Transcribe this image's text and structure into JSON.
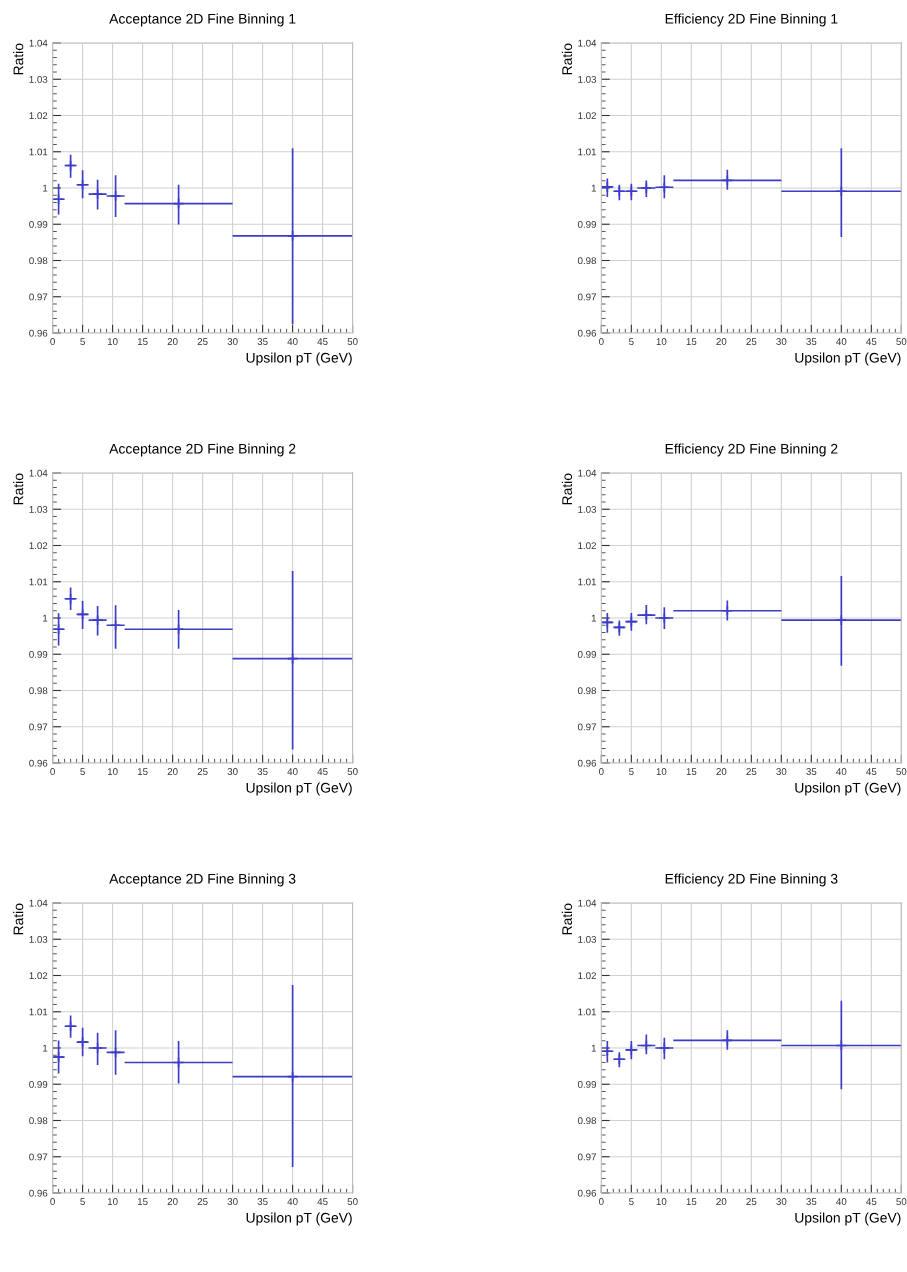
{
  "chart_data": [
    {
      "type": "scatter",
      "title": "Acceptance 2D Fine Binning 1",
      "xlabel": "Upsilon pT (GeV)",
      "ylabel": "Ratio",
      "x": [
        1,
        3,
        5,
        7.5,
        10.5,
        21,
        40
      ],
      "xerrors": [
        [
          0,
          2
        ],
        [
          2,
          4
        ],
        [
          4,
          6
        ],
        [
          6,
          9
        ],
        [
          9,
          12
        ],
        [
          12,
          30
        ],
        [
          30,
          50
        ]
      ],
      "values": [
        0.9969,
        1.0062,
        1.0009,
        0.9983,
        0.9978,
        0.9957,
        0.9868
      ],
      "errors": [
        [
          0.9927,
          1.0012
        ],
        [
          1.0028,
          1.0092
        ],
        [
          0.9972,
          1.0049
        ],
        [
          0.9941,
          1.0023
        ],
        [
          0.992,
          1.0035
        ],
        [
          0.9899,
          1.0009
        ],
        [
          0.9624,
          1.011
        ]
      ],
      "color": "#3c3cc8",
      "marker": "cross",
      "grid": true,
      "xlim": [
        0,
        50
      ],
      "ylim": [
        0.96,
        1.04
      ],
      "xticks": [
        0,
        5,
        10,
        15,
        20,
        25,
        30,
        35,
        40,
        45,
        50
      ],
      "yticks": [
        0.96,
        0.97,
        0.98,
        0.99,
        1,
        1.01,
        1.02,
        1.03,
        1.04
      ]
    },
    {
      "type": "scatter",
      "title": "Efficiency 2D Fine Binning 1",
      "xlabel": "Upsilon pT (GeV)",
      "ylabel": "Ratio",
      "x": [
        1,
        3,
        5,
        7.5,
        10.5,
        21,
        40
      ],
      "xerrors": [
        [
          0,
          2
        ],
        [
          2,
          4
        ],
        [
          4,
          6
        ],
        [
          6,
          9
        ],
        [
          9,
          12
        ],
        [
          12,
          30
        ],
        [
          30,
          50
        ]
      ],
      "values": [
        1.0003,
        0.9991,
        0.9991,
        1.0,
        1.0002,
        1.0021,
        0.9991
      ],
      "errors": [
        [
          0.9975,
          1.0026
        ],
        [
          0.9966,
          1.0009
        ],
        [
          0.9966,
          1.0012
        ],
        [
          0.9975,
          1.0021
        ],
        [
          0.9972,
          1.0035
        ],
        [
          0.9995,
          1.005
        ],
        [
          0.9865,
          1.011
        ]
      ],
      "color": "#3c3cc8",
      "marker": "cross",
      "grid": true,
      "xlim": [
        0,
        50
      ],
      "ylim": [
        0.96,
        1.04
      ],
      "xticks": [
        0,
        5,
        10,
        15,
        20,
        25,
        30,
        35,
        40,
        45,
        50
      ],
      "yticks": [
        0.96,
        0.97,
        0.98,
        0.99,
        1,
        1.01,
        1.02,
        1.03,
        1.04
      ]
    },
    {
      "type": "scatter",
      "title": "Acceptance 2D Fine Binning 2",
      "xlabel": "Upsilon pT (GeV)",
      "ylabel": "Ratio",
      "x": [
        1,
        3,
        5,
        7.5,
        10.5,
        21,
        40
      ],
      "xerrors": [
        [
          0,
          2
        ],
        [
          2,
          4
        ],
        [
          4,
          6
        ],
        [
          6,
          9
        ],
        [
          9,
          12
        ],
        [
          12,
          30
        ],
        [
          30,
          50
        ]
      ],
      "values": [
        0.9969,
        1.0053,
        1.001,
        0.9994,
        0.998,
        0.9969,
        0.9888
      ],
      "errors": [
        [
          0.9924,
          1.0013
        ],
        [
          1.0022,
          1.0084
        ],
        [
          0.997,
          1.0047
        ],
        [
          0.9952,
          1.0033
        ],
        [
          0.9915,
          1.0035
        ],
        [
          0.9915,
          1.0022
        ],
        [
          0.9637,
          1.013
        ]
      ],
      "color": "#3c3cc8",
      "marker": "cross",
      "grid": true,
      "xlim": [
        0,
        50
      ],
      "ylim": [
        0.96,
        1.04
      ],
      "xticks": [
        0,
        5,
        10,
        15,
        20,
        25,
        30,
        35,
        40,
        45,
        50
      ],
      "yticks": [
        0.96,
        0.97,
        0.98,
        0.99,
        1,
        1.01,
        1.02,
        1.03,
        1.04
      ]
    },
    {
      "type": "scatter",
      "title": "Efficiency 2D Fine Binning 2",
      "xlabel": "Upsilon pT (GeV)",
      "ylabel": "Ratio",
      "x": [
        1,
        3,
        5,
        7.5,
        10.5,
        21,
        40
      ],
      "xerrors": [
        [
          0,
          2
        ],
        [
          2,
          4
        ],
        [
          4,
          6
        ],
        [
          6,
          9
        ],
        [
          9,
          12
        ],
        [
          12,
          30
        ],
        [
          30,
          50
        ]
      ],
      "values": [
        0.9988,
        0.9974,
        0.999,
        1.0008,
        1.0,
        1.002,
        0.9994
      ],
      "errors": [
        [
          0.9959,
          1.0014
        ],
        [
          0.9951,
          0.9993
        ],
        [
          0.9965,
          1.0014
        ],
        [
          0.9983,
          1.0036
        ],
        [
          0.997,
          1.003
        ],
        [
          0.9993,
          1.0048
        ],
        [
          0.9868,
          1.0116
        ]
      ],
      "color": "#3c3cc8",
      "marker": "cross",
      "grid": true,
      "xlim": [
        0,
        50
      ],
      "ylim": [
        0.96,
        1.04
      ],
      "xticks": [
        0,
        5,
        10,
        15,
        20,
        25,
        30,
        35,
        40,
        45,
        50
      ],
      "yticks": [
        0.96,
        0.97,
        0.98,
        0.99,
        1,
        1.01,
        1.02,
        1.03,
        1.04
      ]
    },
    {
      "type": "scatter",
      "title": "Acceptance 2D Fine Binning 3",
      "xlabel": "Upsilon pT (GeV)",
      "ylabel": "Ratio",
      "x": [
        1,
        3,
        5,
        7.5,
        10.5,
        21,
        40
      ],
      "xerrors": [
        [
          0,
          2
        ],
        [
          2,
          4
        ],
        [
          4,
          6
        ],
        [
          6,
          9
        ],
        [
          9,
          12
        ],
        [
          12,
          30
        ],
        [
          30,
          50
        ]
      ],
      "values": [
        0.9975,
        1.006,
        1.0016,
        1.0,
        0.9988,
        0.996,
        0.9921
      ],
      "errors": [
        [
          0.993,
          1.0021
        ],
        [
          1.0028,
          1.009
        ],
        [
          0.9977,
          1.0056
        ],
        [
          0.9953,
          1.0042
        ],
        [
          0.9926,
          1.0049
        ],
        [
          0.9902,
          1.0019
        ],
        [
          0.9672,
          1.0174
        ]
      ],
      "color": "#3c3cc8",
      "marker": "cross",
      "grid": true,
      "xlim": [
        0,
        50
      ],
      "ylim": [
        0.96,
        1.04
      ],
      "xticks": [
        0,
        5,
        10,
        15,
        20,
        25,
        30,
        35,
        40,
        45,
        50
      ],
      "yticks": [
        0.96,
        0.97,
        0.98,
        0.99,
        1,
        1.01,
        1.02,
        1.03,
        1.04
      ]
    },
    {
      "type": "scatter",
      "title": "Efficiency 2D Fine Binning 3",
      "xlabel": "Upsilon pT (GeV)",
      "ylabel": "Ratio",
      "x": [
        1,
        3,
        5,
        7.5,
        10.5,
        21,
        40
      ],
      "xerrors": [
        [
          0,
          2
        ],
        [
          2,
          4
        ],
        [
          4,
          6
        ],
        [
          6,
          9
        ],
        [
          9,
          12
        ],
        [
          12,
          30
        ],
        [
          30,
          50
        ]
      ],
      "values": [
        0.9991,
        0.9969,
        0.9995,
        1.0007,
        1.0,
        1.0021,
        1.0007
      ],
      "errors": [
        [
          0.996,
          1.0019
        ],
        [
          0.9947,
          0.9988
        ],
        [
          0.9969,
          1.0019
        ],
        [
          0.9983,
          1.0037
        ],
        [
          0.9969,
          1.0028
        ],
        [
          0.9995,
          1.0049
        ],
        [
          0.9886,
          1.013
        ]
      ],
      "color": "#3c3cc8",
      "marker": "cross",
      "grid": true,
      "xlim": [
        0,
        50
      ],
      "ylim": [
        0.96,
        1.04
      ],
      "xticks": [
        0,
        5,
        10,
        15,
        20,
        25,
        30,
        35,
        40,
        45,
        50
      ],
      "yticks": [
        0.96,
        0.97,
        0.98,
        0.99,
        1,
        1.01,
        1.02,
        1.03,
        1.04
      ]
    }
  ]
}
